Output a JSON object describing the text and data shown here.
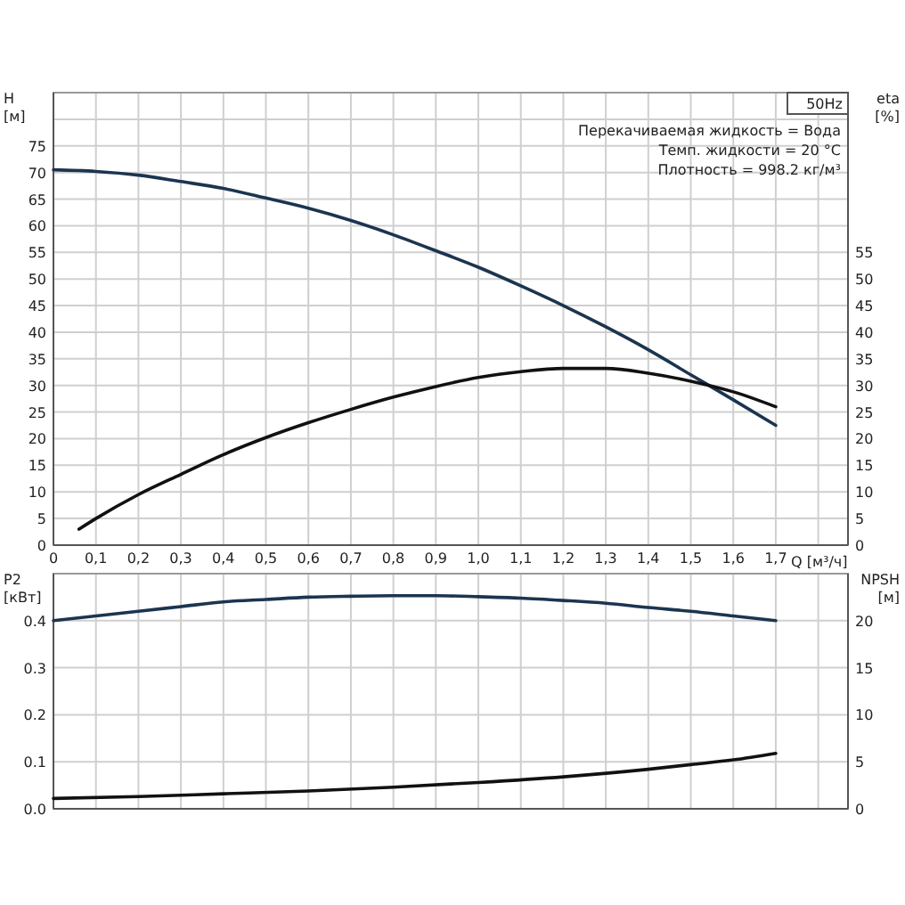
{
  "chart_data": [
    {
      "type": "line",
      "ylabel": "H [м]",
      "y2label": "eta [%]",
      "xlabel": "Q [м³/ч]",
      "annotations": [
        "50Hz",
        "Перекачиваемая жидкость = Вода",
        "Темп. жидкости = 20 °C",
        "Плотность = 998.2 кг/м³"
      ],
      "xlim": [
        0,
        1.87
      ],
      "xticks": [
        0,
        {
          "value": 0.1,
          "label": "0,1"
        },
        {
          "value": 0.2,
          "label": "0,2"
        },
        {
          "value": 0.3,
          "label": "0,3"
        },
        {
          "value": 0.4,
          "label": "0,4"
        },
        {
          "value": 0.5,
          "label": "0,5"
        },
        {
          "value": 0.6,
          "label": "0,6"
        },
        {
          "value": 0.7,
          "label": "0,7"
        },
        {
          "value": 0.8,
          "label": "0,8"
        },
        {
          "value": 0.9,
          "label": "0,9"
        },
        {
          "value": 1.0,
          "label": "1,0"
        },
        {
          "value": 1.1,
          "label": "1,1"
        },
        {
          "value": 1.2,
          "label": "1,2"
        },
        {
          "value": 1.3,
          "label": "1,3"
        },
        {
          "value": 1.4,
          "label": "1,4"
        },
        {
          "value": 1.5,
          "label": "1,5"
        },
        {
          "value": 1.6,
          "label": "1,6"
        },
        {
          "value": 1.7,
          "label": "1,7"
        },
        {
          "value": 1.8,
          "label": null
        }
      ],
      "ylim": [
        0,
        85
      ],
      "yticks": [
        0,
        5,
        10,
        15,
        20,
        25,
        30,
        35,
        40,
        45,
        50,
        55,
        60,
        65,
        70,
        75,
        {
          "value": 80,
          "label": null
        }
      ],
      "y2lim": [
        0,
        85
      ],
      "y2ticks": [
        0,
        5,
        10,
        15,
        20,
        25,
        30,
        35,
        40,
        45,
        50,
        55
      ],
      "grid": true,
      "tick_labels": "xy",
      "series": [
        {
          "color": "#1b3550",
          "x": [
            0,
            0.1,
            0.2,
            0.3,
            0.4,
            0.5,
            0.6,
            0.7,
            0.8,
            0.9,
            1.0,
            1.1,
            1.2,
            1.3,
            1.4,
            1.5,
            1.6,
            1.7
          ],
          "values": [
            70.5,
            70.2,
            69.5,
            68.3,
            67,
            65.2,
            63.3,
            61,
            58.3,
            55.3,
            52.2,
            48.7,
            45,
            41,
            36.7,
            32,
            27.3,
            22.5
          ]
        },
        {
          "color": "#111111",
          "axis": "y2",
          "x": [
            0.06,
            0.1,
            0.2,
            0.3,
            0.4,
            0.5,
            0.6,
            0.7,
            0.8,
            0.9,
            1.0,
            1.1,
            1.2,
            1.3,
            1.4,
            1.5,
            1.6,
            1.7
          ],
          "values": [
            3,
            5,
            9.5,
            13.3,
            17,
            20.2,
            23,
            25.5,
            27.8,
            29.8,
            31.5,
            32.6,
            33.2,
            33.2,
            32.3,
            30.8,
            28.8,
            26
          ]
        }
      ]
    },
    {
      "type": "line",
      "ylabel": "P2 [кВт]",
      "y2label": "NPSH [м]",
      "xlim": [
        0,
        1.87
      ],
      "xticks": [
        0,
        0.1,
        0.2,
        0.3,
        0.4,
        0.5,
        0.6,
        0.7,
        0.8,
        0.9,
        1.0,
        1.1,
        1.2,
        1.3,
        1.4,
        1.5,
        1.6,
        1.7,
        1.8
      ],
      "ylim": [
        0,
        0.5
      ],
      "yticks": [
        {
          "value": 0,
          "label": "0.0"
        },
        0.1,
        0.2,
        0.3,
        0.4
      ],
      "y2lim": [
        0,
        25
      ],
      "y2ticks": [
        0,
        5,
        10,
        15,
        20
      ],
      "grid": true,
      "tick_labels": "y",
      "series": [
        {
          "color": "#1b3550",
          "x": [
            0,
            0.1,
            0.2,
            0.3,
            0.4,
            0.5,
            0.6,
            0.7,
            0.8,
            0.9,
            1.0,
            1.1,
            1.2,
            1.3,
            1.4,
            1.5,
            1.6,
            1.7
          ],
          "values": [
            0.4,
            0.41,
            0.42,
            0.43,
            0.44,
            0.445,
            0.45,
            0.452,
            0.453,
            0.453,
            0.451,
            0.448,
            0.443,
            0.437,
            0.428,
            0.42,
            0.41,
            0.4
          ]
        },
        {
          "color": "#111111",
          "axis": "y2",
          "x": [
            0,
            0.2,
            0.4,
            0.6,
            0.8,
            1.0,
            1.2,
            1.4,
            1.5,
            1.6,
            1.7
          ],
          "values": [
            1.1,
            1.3,
            1.6,
            1.9,
            2.3,
            2.8,
            3.4,
            4.2,
            4.7,
            5.2,
            5.9
          ]
        }
      ]
    }
  ]
}
